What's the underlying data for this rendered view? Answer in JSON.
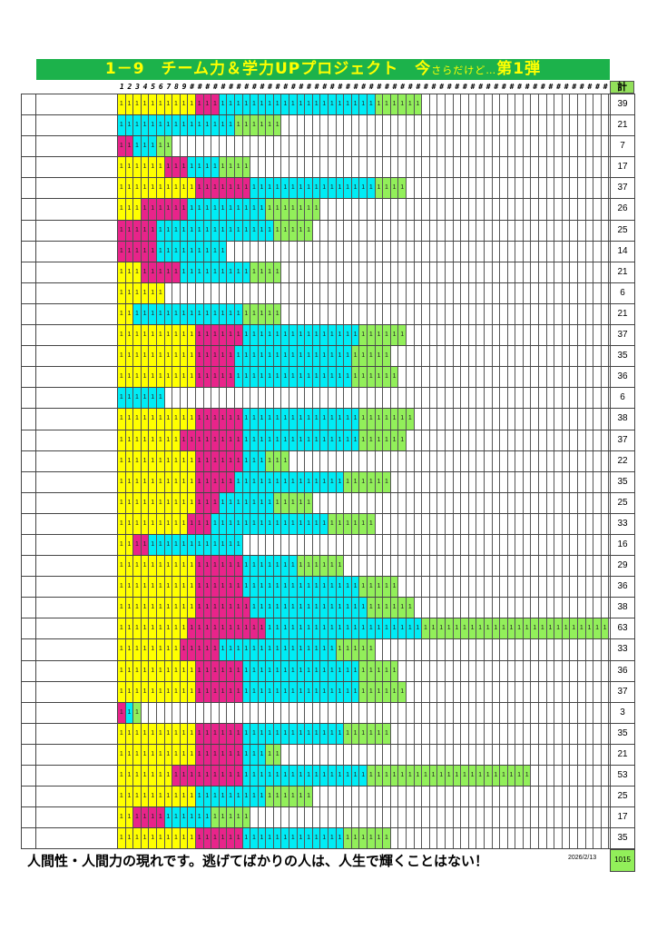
{
  "title": {
    "main": "1－9　チーム力＆学力UPプロジェクト　今",
    "sub": "さらだけど…",
    "tail": "第1弾"
  },
  "header": {
    "labels": [
      "1",
      "2",
      "3",
      "4",
      "5",
      "6",
      "7",
      "8",
      "9",
      "#",
      "#",
      "#",
      "#",
      "#",
      "#",
      "#",
      "#",
      "#",
      "#",
      "#",
      "#",
      "#",
      "#",
      "#",
      "#",
      "#",
      "#",
      "#",
      "#",
      "#",
      "#",
      "#",
      "#",
      "#",
      "#",
      "#",
      "#",
      "#",
      "#",
      "#",
      "#",
      "#",
      "#",
      "#",
      "#",
      "#",
      "#",
      "#",
      "#",
      "#",
      "#",
      "#",
      "#",
      "#",
      "#",
      "#",
      "#",
      "#",
      "#",
      "#",
      "#",
      "#",
      "#"
    ],
    "total_label": "計"
  },
  "colors": {
    "y": "#ffff00",
    "m": "#e8248a",
    "c": "#00ecf5",
    "g": "#92ef5a"
  },
  "cell_mark": "1",
  "rows": [
    {
      "segments": [
        [
          "y",
          10
        ],
        [
          "m",
          3
        ],
        [
          "c",
          20
        ],
        [
          "g",
          6
        ]
      ],
      "total": "39"
    },
    {
      "segments": [
        [
          "c",
          15
        ],
        [
          "g",
          6
        ]
      ],
      "total": "21"
    },
    {
      "segments": [
        [
          "m",
          2
        ],
        [
          "c",
          3
        ],
        [
          "g",
          2
        ]
      ],
      "total": "7"
    },
    {
      "segments": [
        [
          "y",
          6
        ],
        [
          "m",
          3
        ],
        [
          "c",
          4
        ],
        [
          "g",
          4
        ]
      ],
      "total": "17"
    },
    {
      "segments": [
        [
          "y",
          10
        ],
        [
          "m",
          7
        ],
        [
          "c",
          16
        ],
        [
          "g",
          4
        ]
      ],
      "total": "37"
    },
    {
      "segments": [
        [
          "y",
          3
        ],
        [
          "m",
          6
        ],
        [
          "c",
          10
        ],
        [
          "g",
          7
        ]
      ],
      "total": "26"
    },
    {
      "segments": [
        [
          "m",
          5
        ],
        [
          "c",
          15
        ],
        [
          "g",
          5
        ]
      ],
      "total": "25"
    },
    {
      "segments": [
        [
          "m",
          5
        ],
        [
          "c",
          9
        ]
      ],
      "total": "14"
    },
    {
      "segments": [
        [
          "y",
          3
        ],
        [
          "m",
          5
        ],
        [
          "c",
          9
        ],
        [
          "g",
          4
        ]
      ],
      "total": "21"
    },
    {
      "segments": [
        [
          "y",
          6
        ]
      ],
      "total": "6"
    },
    {
      "segments": [
        [
          "y",
          2
        ],
        [
          "c",
          14
        ],
        [
          "g",
          5
        ]
      ],
      "total": "21"
    },
    {
      "segments": [
        [
          "y",
          10
        ],
        [
          "m",
          6
        ],
        [
          "c",
          15
        ],
        [
          "g",
          6
        ]
      ],
      "total": "37"
    },
    {
      "segments": [
        [
          "y",
          10
        ],
        [
          "m",
          5
        ],
        [
          "c",
          15
        ],
        [
          "g",
          5
        ]
      ],
      "total": "35"
    },
    {
      "segments": [
        [
          "y",
          10
        ],
        [
          "m",
          5
        ],
        [
          "c",
          15
        ],
        [
          "g",
          6
        ]
      ],
      "total": "36"
    },
    {
      "segments": [
        [
          "c",
          6
        ]
      ],
      "total": "6"
    },
    {
      "segments": [
        [
          "y",
          10
        ],
        [
          "m",
          6
        ],
        [
          "c",
          15
        ],
        [
          "g",
          7
        ]
      ],
      "total": "38"
    },
    {
      "segments": [
        [
          "y",
          8
        ],
        [
          "m",
          8
        ],
        [
          "c",
          15
        ],
        [
          "g",
          6
        ]
      ],
      "total": "37"
    },
    {
      "segments": [
        [
          "y",
          10
        ],
        [
          "m",
          6
        ],
        [
          "c",
          3
        ],
        [
          "g",
          3
        ]
      ],
      "total": "22"
    },
    {
      "segments": [
        [
          "y",
          10
        ],
        [
          "m",
          5
        ],
        [
          "c",
          14
        ],
        [
          "g",
          6
        ]
      ],
      "total": "35"
    },
    {
      "segments": [
        [
          "y",
          10
        ],
        [
          "m",
          3
        ],
        [
          "c",
          7
        ],
        [
          "g",
          5
        ]
      ],
      "total": "25"
    },
    {
      "segments": [
        [
          "y",
          9
        ],
        [
          "m",
          3
        ],
        [
          "c",
          15
        ],
        [
          "g",
          6
        ]
      ],
      "total": "33"
    },
    {
      "segments": [
        [
          "y",
          2
        ],
        [
          "m",
          2
        ],
        [
          "c",
          12
        ]
      ],
      "total": "16"
    },
    {
      "segments": [
        [
          "y",
          10
        ],
        [
          "m",
          6
        ],
        [
          "c",
          7
        ],
        [
          "g",
          6
        ]
      ],
      "total": "29"
    },
    {
      "segments": [
        [
          "y",
          10
        ],
        [
          "m",
          6
        ],
        [
          "c",
          15
        ],
        [
          "g",
          5
        ]
      ],
      "total": "36"
    },
    {
      "segments": [
        [
          "y",
          10
        ],
        [
          "m",
          7
        ],
        [
          "c",
          15
        ],
        [
          "g",
          6
        ]
      ],
      "total": "38"
    },
    {
      "segments": [
        [
          "y",
          9
        ],
        [
          "m",
          10
        ],
        [
          "c",
          20
        ],
        [
          "g",
          24
        ]
      ],
      "total": "63"
    },
    {
      "segments": [
        [
          "y",
          8
        ],
        [
          "m",
          5
        ],
        [
          "c",
          15
        ],
        [
          "g",
          5
        ]
      ],
      "total": "33"
    },
    {
      "segments": [
        [
          "y",
          10
        ],
        [
          "m",
          6
        ],
        [
          "c",
          15
        ],
        [
          "g",
          5
        ]
      ],
      "total": "36"
    },
    {
      "segments": [
        [
          "y",
          10
        ],
        [
          "m",
          6
        ],
        [
          "c",
          15
        ],
        [
          "g",
          6
        ]
      ],
      "total": "37"
    },
    {
      "segments": [
        [
          "m",
          1
        ],
        [
          "c",
          1
        ],
        [
          "g",
          1
        ]
      ],
      "total": "3"
    },
    {
      "segments": [
        [
          "y",
          10
        ],
        [
          "m",
          6
        ],
        [
          "c",
          13
        ],
        [
          "g",
          6
        ]
      ],
      "total": "35"
    },
    {
      "segments": [
        [
          "y",
          10
        ],
        [
          "m",
          6
        ],
        [
          "c",
          3
        ],
        [
          "g",
          2
        ]
      ],
      "total": "21"
    },
    {
      "segments": [
        [
          "y",
          7
        ],
        [
          "m",
          9
        ],
        [
          "c",
          16
        ],
        [
          "g",
          21
        ]
      ],
      "total": "53"
    },
    {
      "segments": [
        [
          "y",
          10
        ],
        [
          "c",
          9
        ],
        [
          "g",
          6
        ]
      ],
      "total": "25"
    },
    {
      "segments": [
        [
          "y",
          2
        ],
        [
          "m",
          4
        ],
        [
          "c",
          6
        ],
        [
          "g",
          5
        ]
      ],
      "total": "17"
    },
    {
      "segments": [
        [
          "y",
          10
        ],
        [
          "m",
          6
        ],
        [
          "c",
          13
        ],
        [
          "g",
          6
        ]
      ],
      "total": "35"
    }
  ],
  "footer": {
    "motto": "人間性・人間力の現れです。逃げてばかりの人は、人生で輝くことはない！",
    "date": "2026/2/13",
    "grand_total": "1015"
  }
}
